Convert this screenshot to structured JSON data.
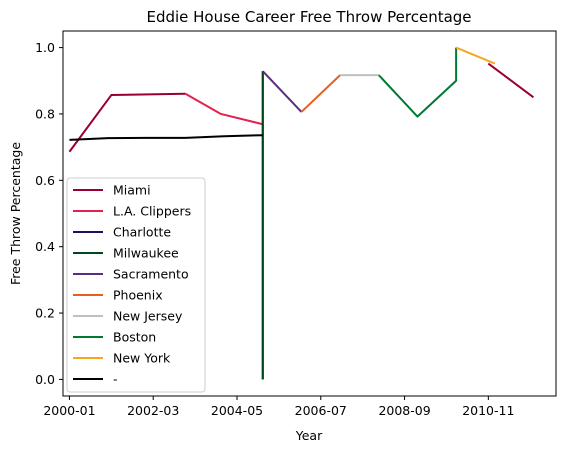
{
  "chart_data": {
    "type": "line",
    "title": "Eddie House Career Free Throw Percentage",
    "xlabel": "Year",
    "ylabel": "Free Throw Percentage",
    "x_type": "date",
    "xlim": [
      "1999-11",
      "2012-08"
    ],
    "ylim": [
      -0.05,
      1.05
    ],
    "x_ticks": [
      "2000-01",
      "2002-03",
      "2004-05",
      "2006-07",
      "2008-09",
      "2010-11"
    ],
    "y_ticks": [
      0.0,
      0.2,
      0.4,
      0.6,
      0.8,
      1.0
    ],
    "grid": false,
    "legend_position": "lower-left",
    "series": [
      {
        "name": "Miami",
        "color": "#98002E",
        "x": [
          "2000-01",
          "2001-02",
          "2003-01",
          "2010-11",
          "2012-01"
        ],
        "y": [
          0.686,
          0.857,
          0.861,
          0.952,
          0.85
        ],
        "segments": [
          [
            0,
            2
          ],
          [
            3,
            4
          ]
        ]
      },
      {
        "name": "L.A. Clippers",
        "color": "#E2224F",
        "x": [
          "2001-02",
          "2003-01",
          "2003-12",
          "2005-01"
        ],
        "y": [
          0.857,
          0.861,
          0.8,
          0.769
        ],
        "segments": [
          [
            1,
            3
          ]
        ]
      },
      {
        "name": "Charlotte",
        "color": "#1D1160",
        "x": [
          "2005-01",
          "2005-01"
        ],
        "y": [
          0.0,
          0.929
        ],
        "segments": [
          [
            0,
            1
          ]
        ]
      },
      {
        "name": "Milwaukee",
        "color": "#00471B",
        "x": [
          "2005-01",
          "2005-01"
        ],
        "y": [
          0.0,
          0.929
        ],
        "segments": [
          [
            0,
            1
          ]
        ]
      },
      {
        "name": "Sacramento",
        "color": "#5A2D81",
        "x": [
          "2005-01",
          "2006-01"
        ],
        "y": [
          0.929,
          0.806
        ],
        "segments": [
          [
            0,
            1
          ]
        ]
      },
      {
        "name": "Phoenix",
        "color": "#E56020",
        "x": [
          "2006-01",
          "2007-01"
        ],
        "y": [
          0.806,
          0.917
        ],
        "segments": [
          [
            0,
            1
          ]
        ]
      },
      {
        "name": "New Jersey",
        "color": "#C0C0C0",
        "x": [
          "2007-01",
          "2008-01"
        ],
        "y": [
          0.917,
          0.917
        ],
        "segments": [
          [
            0,
            1
          ]
        ]
      },
      {
        "name": "Boston",
        "color": "#007A33",
        "x": [
          "2008-01",
          "2009-01",
          "2010-01",
          "2010-01"
        ],
        "y": [
          0.917,
          0.792,
          0.9,
          1.0
        ],
        "segments": [
          [
            0,
            3
          ]
        ]
      },
      {
        "name": "New York",
        "color": "#F5A623",
        "x": [
          "2010-01",
          "2011-01"
        ],
        "y": [
          1.0,
          0.952
        ],
        "segments": [
          [
            0,
            1
          ]
        ]
      },
      {
        "name": "-",
        "color": "#000000",
        "x": [
          "2000-01",
          "2001-01",
          "2002-01",
          "2003-01",
          "2004-01",
          "2005-01"
        ],
        "y": [
          0.722,
          0.727,
          0.728,
          0.728,
          0.733,
          0.736
        ],
        "segments": [
          [
            0,
            5
          ]
        ]
      }
    ]
  }
}
